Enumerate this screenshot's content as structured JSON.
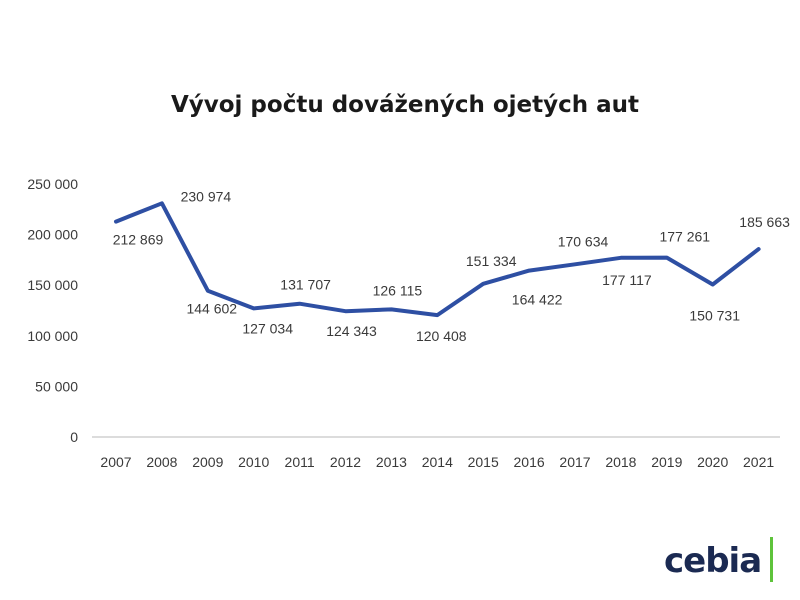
{
  "chart_data": {
    "type": "line",
    "title": "Vývoj počtu dovážených ojetých aut",
    "xlabel": "",
    "ylabel": "",
    "categories": [
      "2007",
      "2008",
      "2009",
      "2010",
      "2011",
      "2012",
      "2013",
      "2014",
      "2015",
      "2016",
      "2017",
      "2018",
      "2019",
      "2020",
      "2021"
    ],
    "series": [
      {
        "values": [
          212869,
          230974,
          144602,
          127034,
          131707,
          124343,
          126115,
          120408,
          151334,
          164422,
          170634,
          177117,
          177261,
          150731,
          185663
        ],
        "labels": [
          "212 869",
          "230 974",
          "144 602",
          "127 034",
          "131 707",
          "124 343",
          "126 115",
          "120 408",
          "151 334",
          "164 422",
          "170 634",
          "177 117",
          "177 261",
          "150 731",
          "185 663"
        ],
        "color": "#2e4fa3"
      }
    ],
    "ylim": [
      0,
      250000
    ],
    "yticks": [
      0,
      50000,
      100000,
      150000,
      200000,
      250000
    ],
    "ytick_labels": [
      "0",
      "50 000",
      "100 000",
      "150 000",
      "200 000",
      "250 000"
    ],
    "grid": false,
    "legend": "none"
  },
  "logo": {
    "text": "cebia",
    "text_color": "#1b2a52",
    "accent_color": "#5ec33b"
  }
}
